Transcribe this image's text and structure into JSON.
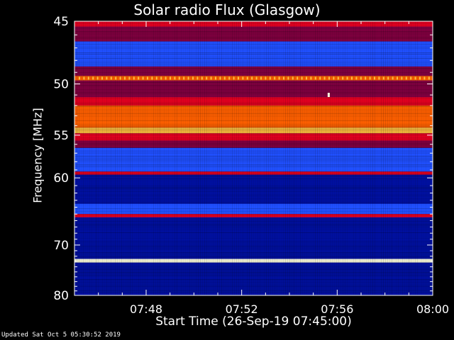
{
  "chart_data": {
    "type": "heatmap",
    "title": "Solar radio Flux (Glasgow)",
    "xlabel": "Start Time (26-Sep-19 07:45:00)",
    "ylabel": "Frequency [MHz]",
    "x_ticks": [
      "07:48",
      "07:52",
      "07:56",
      "08:00"
    ],
    "x_tick_minutes": [
      48,
      52,
      56,
      60
    ],
    "xlim_minutes": [
      45,
      60
    ],
    "y_ticks": [
      45,
      50,
      55,
      60,
      70,
      80
    ],
    "ylim": [
      45,
      80
    ],
    "y_scale": "reciprocal",
    "colormap": [
      "#000010",
      "#0010a0",
      "#2050ff",
      "#800040",
      "#e00020",
      "#ff6000",
      "#ffc040",
      "#ffffe0"
    ],
    "bands": [
      {
        "from": 45,
        "to": 45.4,
        "level": 4
      },
      {
        "from": 45.4,
        "to": 46.5,
        "level": 3
      },
      {
        "from": 46.5,
        "to": 48.5,
        "level": 2
      },
      {
        "from": 48.5,
        "to": 49.3,
        "level": 3
      },
      {
        "from": 49.3,
        "to": 49.7,
        "level": 5
      },
      {
        "from": 49.7,
        "to": 51.2,
        "level": 3
      },
      {
        "from": 51.2,
        "to": 52.0,
        "level": 4
      },
      {
        "from": 52.0,
        "to": 54.2,
        "level": 5
      },
      {
        "from": 54.2,
        "to": 54.8,
        "level": 6
      },
      {
        "from": 54.8,
        "to": 55.6,
        "level": 4
      },
      {
        "from": 55.6,
        "to": 56.4,
        "level": 3
      },
      {
        "from": 56.4,
        "to": 59.2,
        "level": 2
      },
      {
        "from": 59.2,
        "to": 59.6,
        "level": 4
      },
      {
        "from": 59.6,
        "to": 63.5,
        "level": 1
      },
      {
        "from": 63.5,
        "to": 65.0,
        "level": 2
      },
      {
        "from": 65.0,
        "to": 65.5,
        "level": 4
      },
      {
        "from": 65.5,
        "to": 72.5,
        "level": 1
      },
      {
        "from": 72.5,
        "to": 73.2,
        "level": 7
      },
      {
        "from": 73.2,
        "to": 80.0,
        "level": 1
      }
    ]
  },
  "footer": {
    "updated": "Updated Sat Oct  5 05:30:52 2019"
  }
}
